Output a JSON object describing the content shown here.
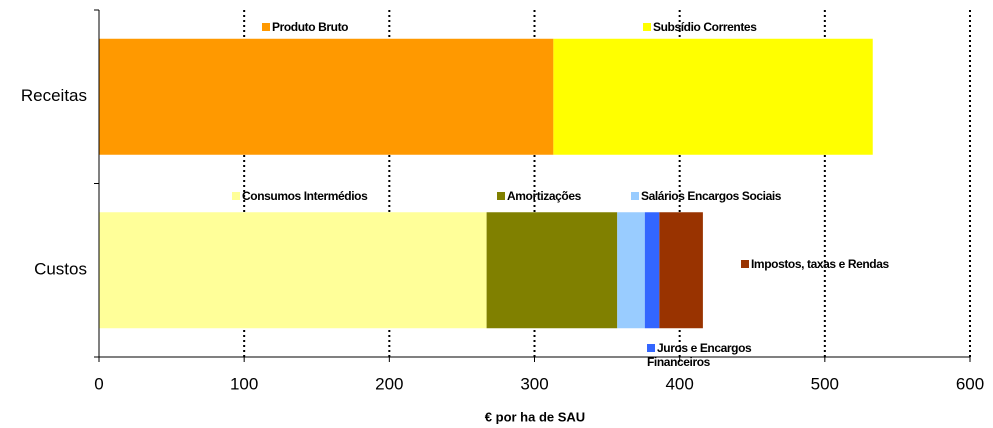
{
  "chart_data": {
    "type": "bar",
    "orientation": "horizontal",
    "stacked": true,
    "xlabel": "€ por ha de SAU",
    "categories": [
      "Receitas",
      "Custos"
    ],
    "series": [
      {
        "name": "Produto Bruto",
        "color": "#ff9900",
        "values": [
          313,
          null
        ]
      },
      {
        "name": "Subsídio Correntes",
        "color": "#ffff00",
        "values": [
          220,
          null
        ]
      },
      {
        "name": "Consumos Intermédios",
        "color": "#ffff99",
        "values": [
          null,
          267
        ]
      },
      {
        "name": "Amortizações",
        "color": "#808000",
        "values": [
          null,
          90
        ]
      },
      {
        "name": "Salários Encargos Sociais",
        "color": "#99ccff",
        "values": [
          null,
          19
        ]
      },
      {
        "name": "Juros e Encargos Financeiros",
        "color": "#3366ff",
        "values": [
          null,
          10
        ]
      },
      {
        "name": "Impostos, taxas e Rendas",
        "color": "#993300",
        "values": [
          null,
          30
        ]
      }
    ],
    "xlim": [
      0,
      600
    ],
    "xticks": [
      0,
      100,
      200,
      300,
      400,
      500,
      600
    ],
    "grid": true
  }
}
